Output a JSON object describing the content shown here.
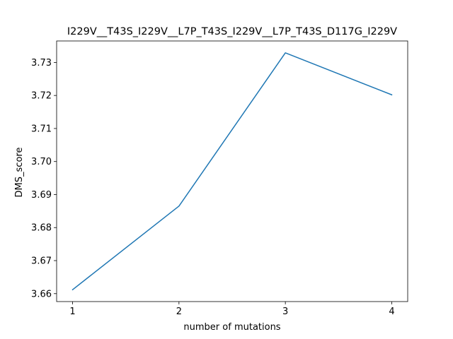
{
  "chart_data": {
    "type": "line",
    "title": "I229V__T43S_I229V__L7P_T43S_I229V__L7P_T43S_D117G_I229V",
    "xlabel": "number of mutations",
    "ylabel": "DMS_score",
    "x": [
      1,
      2,
      3,
      4
    ],
    "series": [
      {
        "values": [
          3.6612,
          3.6865,
          3.7329,
          3.7202
        ],
        "color": "#1f77b4"
      }
    ],
    "xlim": [
      0.85,
      4.15
    ],
    "ylim": [
      3.6576,
      3.7365
    ],
    "xticks": [
      1,
      2,
      3,
      4
    ],
    "xtick_labels": [
      "1",
      "2",
      "3",
      "4"
    ],
    "yticks": [
      3.66,
      3.67,
      3.68,
      3.69,
      3.7,
      3.71,
      3.72,
      3.73
    ],
    "ytick_labels": [
      "3.66",
      "3.67",
      "3.68",
      "3.69",
      "3.70",
      "3.71",
      "3.72",
      "3.73"
    ],
    "grid": false,
    "legend": "none"
  }
}
